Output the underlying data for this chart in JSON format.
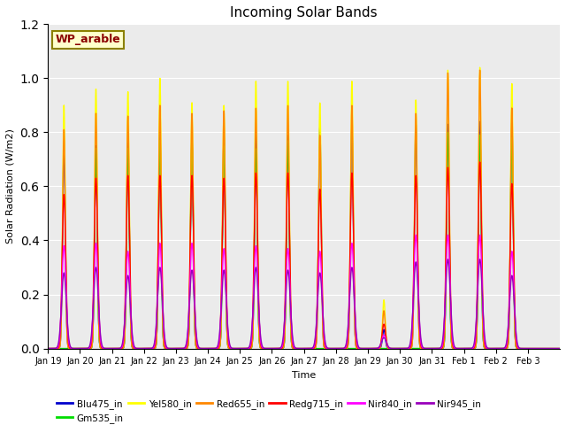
{
  "title": "Incoming Solar Bands",
  "xlabel": "Time",
  "ylabel": "Solar Radiation (W/m2)",
  "annotation": "WP_arable",
  "ylim": [
    0.0,
    1.2
  ],
  "n_days": 16,
  "x_ticks": [
    "Jan 19",
    "Jan 20",
    "Jan 21",
    "Jan 22",
    "Jan 23",
    "Jan 24",
    "Jan 25",
    "Jan 26",
    "Jan 27",
    "Jan 28",
    "Jan 29",
    "Jan 30",
    "Jan 31",
    "Feb 1",
    "Feb 2",
    "Feb 3"
  ],
  "series": [
    {
      "name": "Blu475_in",
      "color": "#0000CC",
      "lw": 1.0,
      "sigma": 0.042
    },
    {
      "name": "Gm535_in",
      "color": "#00DD00",
      "lw": 1.0,
      "sigma": 0.042
    },
    {
      "name": "Yel580_in",
      "color": "#FFFF00",
      "lw": 1.0,
      "sigma": 0.042
    },
    {
      "name": "Red655_in",
      "color": "#FF8800",
      "lw": 1.0,
      "sigma": 0.042
    },
    {
      "name": "Redg715_in",
      "color": "#FF0000",
      "lw": 1.0,
      "sigma": 0.055
    },
    {
      "name": "Nir840_in",
      "color": "#FF00FF",
      "lw": 1.0,
      "sigma": 0.065
    },
    {
      "name": "Nir945_in",
      "color": "#9900BB",
      "lw": 1.0,
      "sigma": 0.075
    }
  ],
  "peak_values": [
    [
      0.77,
      0.75,
      0.79,
      0.8,
      0.78,
      0.79,
      0.79,
      0.79,
      0.82,
      0.82,
      0.07,
      0.83,
      0.83,
      0.84,
      0.84,
      0.0
    ],
    [
      0.0,
      0.74,
      0.74,
      0.77,
      0.77,
      0.75,
      0.74,
      0.77,
      0.0,
      0.0,
      0.0,
      0.0,
      0.8,
      0.79,
      0.78,
      0.0
    ],
    [
      0.9,
      0.96,
      0.95,
      1.0,
      0.91,
      0.9,
      0.99,
      0.99,
      0.91,
      0.99,
      0.18,
      0.92,
      1.03,
      1.04,
      0.98,
      0.0
    ],
    [
      0.81,
      0.87,
      0.86,
      0.9,
      0.87,
      0.88,
      0.89,
      0.9,
      0.79,
      0.9,
      0.14,
      0.87,
      1.02,
      1.03,
      0.89,
      0.0
    ],
    [
      0.57,
      0.63,
      0.64,
      0.64,
      0.64,
      0.63,
      0.65,
      0.65,
      0.59,
      0.65,
      0.09,
      0.64,
      0.67,
      0.69,
      0.61,
      0.0
    ],
    [
      0.38,
      0.39,
      0.36,
      0.39,
      0.39,
      0.37,
      0.38,
      0.37,
      0.36,
      0.39,
      0.05,
      0.42,
      0.42,
      0.42,
      0.36,
      0.0
    ],
    [
      0.28,
      0.3,
      0.27,
      0.3,
      0.29,
      0.29,
      0.3,
      0.29,
      0.28,
      0.3,
      0.04,
      0.32,
      0.33,
      0.33,
      0.27,
      0.0
    ]
  ],
  "bg_color": "#EBEBEB",
  "fig_bg": "#FFFFFF",
  "grid_color": "#FFFFFF",
  "annotation_fc": "#FFFFCC",
  "annotation_ec": "#8B8000",
  "annotation_tc": "#8B0000"
}
